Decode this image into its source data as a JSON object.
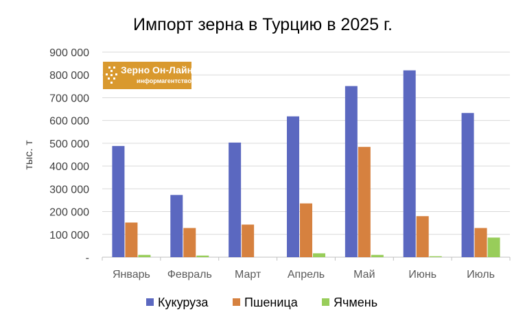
{
  "chart_data": {
    "type": "bar",
    "title": "Импорт зерна в Турцию в 2025 г.",
    "xlabel": "",
    "ylabel": "тыс. т",
    "ylim": [
      0,
      900000
    ],
    "grid": true,
    "legend_position": "bottom",
    "y_ticks": [
      "-",
      "100 000",
      "200 000",
      "300 000",
      "400 000",
      "500 000",
      "600 000",
      "700 000",
      "800 000",
      "900 000"
    ],
    "categories": [
      "Январь",
      "Февраль",
      "Март",
      "Апрель",
      "Май",
      "Июнь",
      "Июль"
    ],
    "series": [
      {
        "name": "Кукуруза",
        "color": "#5B68C0",
        "values": [
          488000,
          273000,
          503000,
          618000,
          751000,
          820000,
          633000
        ]
      },
      {
        "name": "Пшеница",
        "color": "#D6813F",
        "values": [
          152000,
          128000,
          143000,
          236000,
          484000,
          180000,
          128000
        ]
      },
      {
        "name": "Ячмень",
        "color": "#98CD5A",
        "values": [
          10000,
          7000,
          0,
          17000,
          10000,
          4000,
          86000
        ]
      }
    ]
  },
  "logo": {
    "main_text": "Зерно Он-Лайн",
    "sub_text": "информагентство",
    "color": "#D9992E"
  }
}
